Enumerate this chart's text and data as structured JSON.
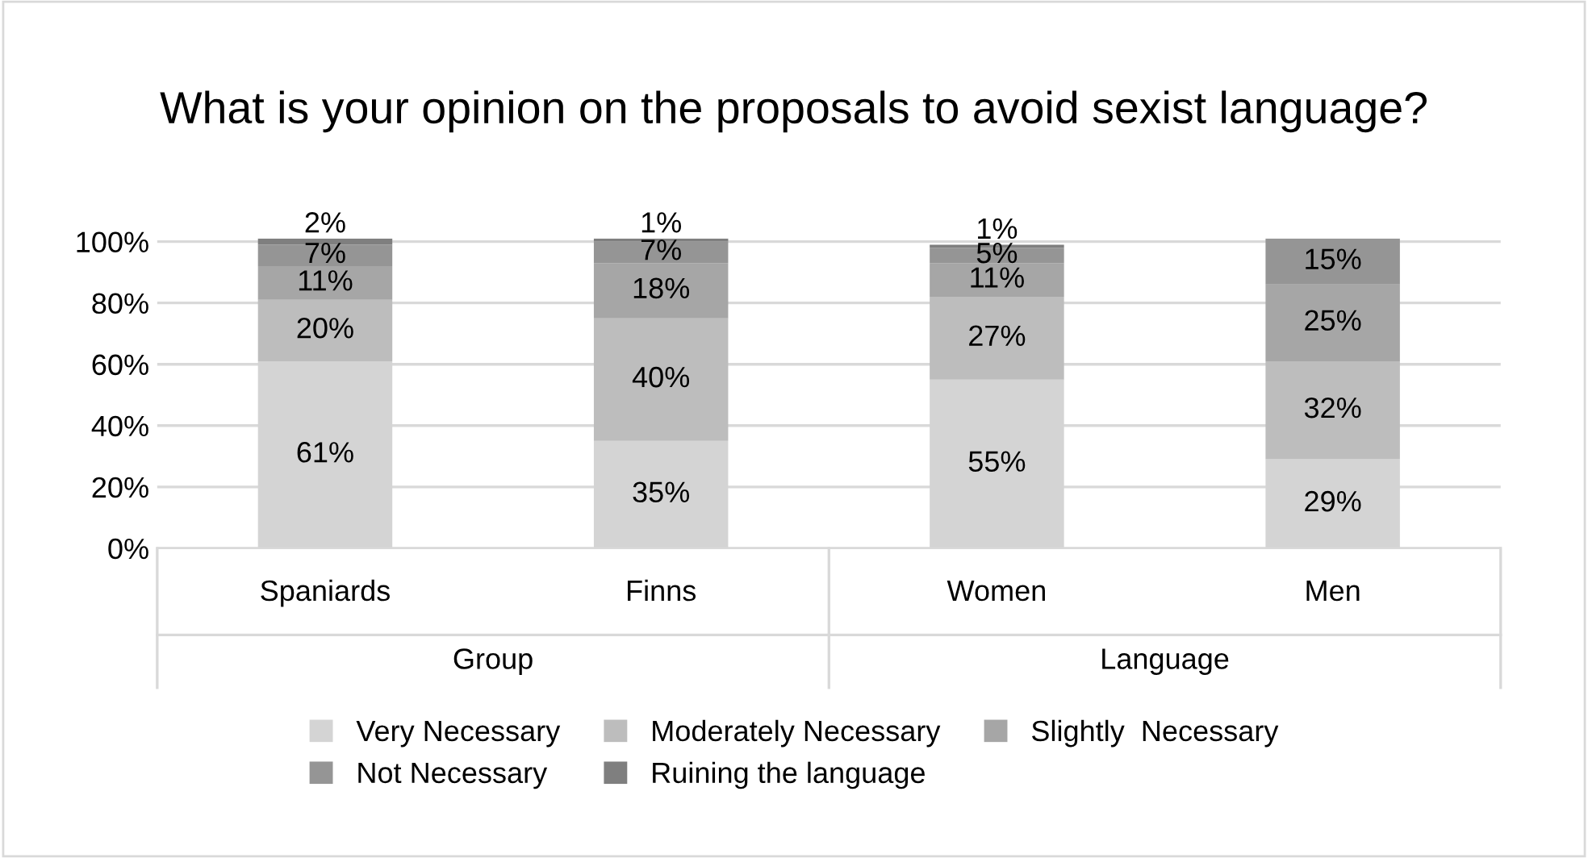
{
  "chart_data": {
    "type": "bar",
    "stacked": true,
    "title": "What is your opinion on the proposals to avoid sexist language?",
    "categories": [
      "Spaniards",
      "Finns",
      "Women",
      "Men"
    ],
    "annotations": [
      "Group",
      "Language"
    ],
    "series": [
      {
        "name": "Very Necessary",
        "color": "#d4d4d4",
        "values": [
          61,
          35,
          55,
          29
        ],
        "value_labels": [
          "61%",
          "35%",
          "55%",
          "29%"
        ]
      },
      {
        "name": "Moderately Necessary",
        "color": "#bdbdbd",
        "values": [
          20,
          40,
          27,
          32
        ],
        "value_labels": [
          "20%",
          "40%",
          "27%",
          "32%"
        ]
      },
      {
        "name": "Slightly  Necessary",
        "color": "#a6a6a6",
        "values": [
          11,
          18,
          11,
          25
        ],
        "value_labels": [
          "11%",
          "18%",
          "11%",
          "25%"
        ]
      },
      {
        "name": "Not Necessary",
        "color": "#959595",
        "values": [
          7,
          7,
          5,
          15
        ],
        "value_labels": [
          "7%",
          "7%",
          "5%",
          "15%"
        ]
      },
      {
        "name": "Ruining the language",
        "color": "#7f7f7f",
        "values": [
          2,
          1,
          1,
          null
        ],
        "value_labels": [
          "2%",
          "1%",
          "1%",
          null
        ]
      }
    ],
    "ylim": [
      0,
      101
    ],
    "yticks": [
      {
        "value": 0,
        "label": "0%"
      },
      {
        "value": 20,
        "label": "20%"
      },
      {
        "value": 40,
        "label": "40%"
      },
      {
        "value": 60,
        "label": "60%"
      },
      {
        "value": 80,
        "label": "80%"
      },
      {
        "value": 100,
        "label": "100%"
      }
    ],
    "grid": "y",
    "legend": "bottom"
  }
}
